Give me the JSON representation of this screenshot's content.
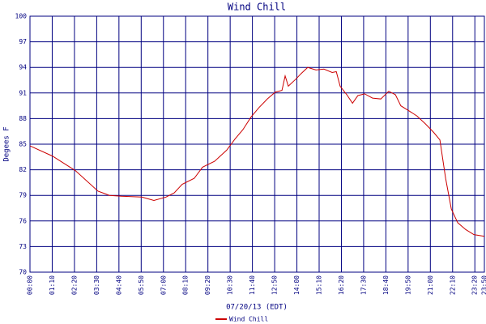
{
  "chart_data": {
    "type": "line",
    "title": "Wind Chill",
    "x_label": "07/20/13 (EDT)",
    "y_label": "Degees F",
    "xlim": [
      0,
      1430
    ],
    "ylim": [
      70,
      100
    ],
    "xticks": [
      {
        "value": 0,
        "label": "00:00"
      },
      {
        "value": 70,
        "label": "01:10"
      },
      {
        "value": 140,
        "label": "02:20"
      },
      {
        "value": 210,
        "label": "03:30"
      },
      {
        "value": 280,
        "label": "04:40"
      },
      {
        "value": 350,
        "label": "05:50"
      },
      {
        "value": 420,
        "label": "07:00"
      },
      {
        "value": 490,
        "label": "08:10"
      },
      {
        "value": 560,
        "label": "09:20"
      },
      {
        "value": 630,
        "label": "10:30"
      },
      {
        "value": 700,
        "label": "11:40"
      },
      {
        "value": 770,
        "label": "12:50"
      },
      {
        "value": 840,
        "label": "14:00"
      },
      {
        "value": 910,
        "label": "15:10"
      },
      {
        "value": 980,
        "label": "16:20"
      },
      {
        "value": 1050,
        "label": "17:30"
      },
      {
        "value": 1120,
        "label": "18:40"
      },
      {
        "value": 1190,
        "label": "19:50"
      },
      {
        "value": 1260,
        "label": "21:00"
      },
      {
        "value": 1330,
        "label": "22:10"
      },
      {
        "value": 1400,
        "label": "23:20"
      },
      {
        "value": 1430,
        "label": "23:50"
      }
    ],
    "yticks": [
      70,
      73,
      76,
      79,
      82,
      85,
      88,
      91,
      94,
      97,
      100
    ],
    "grid": true,
    "grid_color": "#000080",
    "series": [
      {
        "name": "Wind Chill",
        "color": "#cc0000",
        "x": [
          0,
          71,
          143,
          214,
          250,
          288,
          352,
          390,
          428,
          454,
          479,
          517,
          543,
          581,
          619,
          645,
          670,
          696,
          721,
          747,
          772,
          793,
          803,
          813,
          836,
          854,
          874,
          900,
          925,
          951,
          964,
          976,
          997,
          1015,
          1032,
          1053,
          1078,
          1104,
          1129,
          1150,
          1167,
          1193,
          1218,
          1244,
          1270,
          1290,
          1308,
          1326,
          1346,
          1371,
          1397,
          1430
        ],
        "values": [
          84.8,
          83.6,
          81.9,
          79.5,
          79.0,
          78.9,
          78.8,
          78.4,
          78.8,
          79.3,
          80.3,
          81.0,
          82.3,
          83.0,
          84.3,
          85.6,
          86.7,
          88.2,
          89.3,
          90.3,
          91.1,
          91.3,
          93.0,
          91.8,
          92.6,
          93.3,
          94.0,
          93.7,
          93.8,
          93.4,
          93.5,
          91.8,
          90.8,
          89.8,
          90.7,
          90.9,
          90.4,
          90.3,
          91.2,
          90.8,
          89.5,
          88.9,
          88.3,
          87.4,
          86.4,
          85.5,
          81.0,
          77.4,
          75.8,
          75.0,
          74.4,
          74.2
        ]
      }
    ]
  }
}
